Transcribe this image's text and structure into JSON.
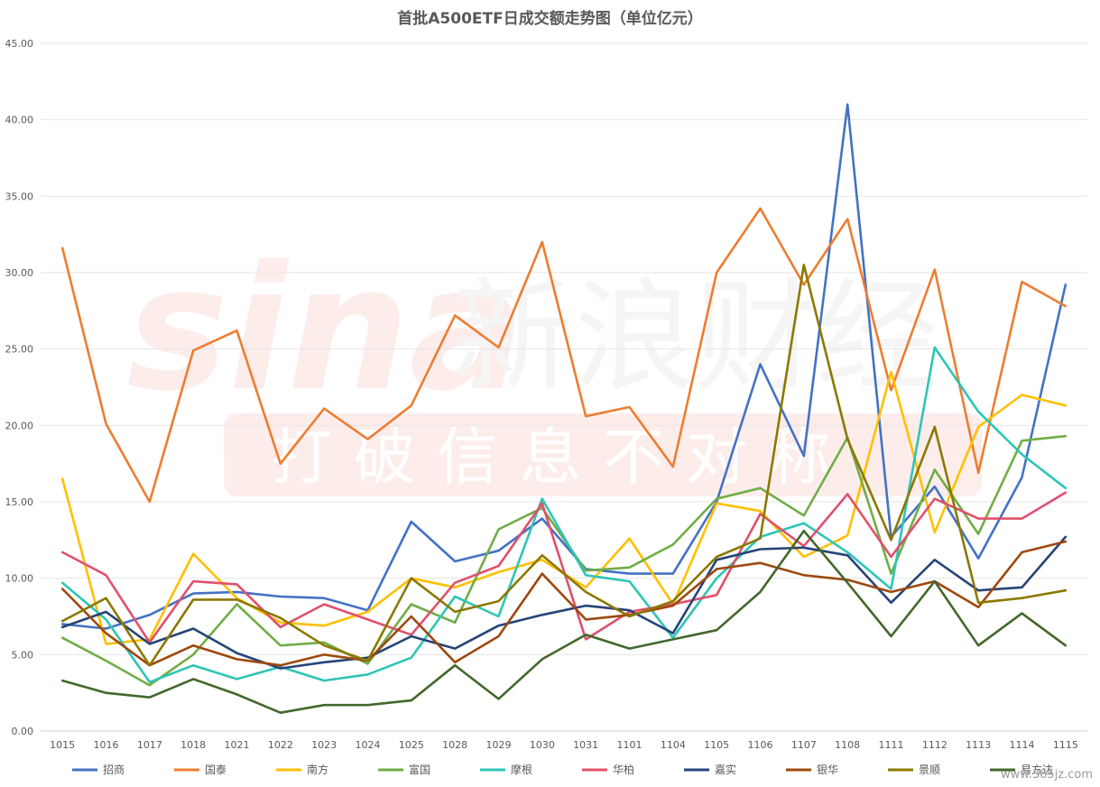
{
  "chart_data": {
    "type": "line",
    "title": "首批A500ETF日成交额走势图（单位亿元）",
    "xlabel": "",
    "ylabel": "",
    "ylim": [
      0,
      45
    ],
    "yticks": [
      "0.00",
      "5.00",
      "10.00",
      "15.00",
      "20.00",
      "25.00",
      "30.00",
      "35.00",
      "40.00",
      "45.00"
    ],
    "grid": true,
    "legend_position": "bottom",
    "categories": [
      "1015",
      "1016",
      "1017",
      "1018",
      "1021",
      "1022",
      "1023",
      "1024",
      "1025",
      "1028",
      "1029",
      "1030",
      "1031",
      "1101",
      "1104",
      "1105",
      "1106",
      "1107",
      "1108",
      "1111",
      "1112",
      "1113",
      "1114",
      "1115"
    ],
    "series": [
      {
        "name": "招商",
        "color": "#4472C4",
        "values": [
          7.0,
          6.7,
          7.6,
          9.0,
          9.1,
          8.8,
          8.7,
          7.9,
          13.7,
          11.1,
          11.8,
          13.9,
          10.6,
          10.3,
          10.3,
          15.0,
          24.0,
          18.0,
          41.0,
          12.7,
          16.0,
          11.3,
          16.6,
          29.2
        ]
      },
      {
        "name": "国泰",
        "color": "#ED7D31",
        "values": [
          31.6,
          20.1,
          15.0,
          24.9,
          26.2,
          17.5,
          21.1,
          19.1,
          21.3,
          27.2,
          25.1,
          32.0,
          20.6,
          21.2,
          17.3,
          30.0,
          34.2,
          29.2,
          33.5,
          22.3,
          30.2,
          16.9,
          29.4,
          27.8
        ]
      },
      {
        "name": "南方",
        "color": "#FFC000",
        "values": [
          16.5,
          5.7,
          6.0,
          11.6,
          8.7,
          7.1,
          6.9,
          7.8,
          10.0,
          9.4,
          10.4,
          11.2,
          9.4,
          12.6,
          8.3,
          14.9,
          14.4,
          11.4,
          12.8,
          23.5,
          13.0,
          19.9,
          22.0,
          21.3
        ]
      },
      {
        "name": "富国",
        "color": "#70AD47",
        "values": [
          6.1,
          4.6,
          3.0,
          5.0,
          8.3,
          5.6,
          5.8,
          4.4,
          8.3,
          7.1,
          13.2,
          14.6,
          10.5,
          10.7,
          12.2,
          15.2,
          15.9,
          14.1,
          19.2,
          10.3,
          17.1,
          12.9,
          19.0,
          19.3
        ]
      },
      {
        "name": "摩根",
        "color": "#2EC5B6",
        "values": [
          9.7,
          7.3,
          3.2,
          4.3,
          3.4,
          4.2,
          3.3,
          3.7,
          4.8,
          8.8,
          7.5,
          15.2,
          10.2,
          9.8,
          6.1,
          10.0,
          12.7,
          13.6,
          11.7,
          9.3,
          25.1,
          20.9,
          18.1,
          15.9
        ]
      },
      {
        "name": "华柏",
        "color": "#E0506C",
        "values": [
          11.7,
          10.2,
          5.8,
          9.8,
          9.6,
          6.8,
          8.3,
          7.3,
          6.3,
          9.7,
          10.8,
          14.9,
          6.0,
          7.8,
          8.3,
          8.9,
          14.2,
          12.1,
          15.5,
          11.4,
          15.2,
          13.9,
          13.9,
          15.6
        ]
      },
      {
        "name": "嘉实",
        "color": "#264478",
        "values": [
          6.8,
          7.8,
          5.7,
          6.7,
          5.1,
          4.1,
          4.5,
          4.8,
          6.2,
          5.4,
          6.9,
          7.6,
          8.2,
          7.9,
          6.4,
          11.2,
          11.9,
          12.0,
          11.5,
          8.4,
          11.2,
          9.2,
          9.4,
          12.7
        ]
      },
      {
        "name": "银华",
        "color": "#9E480E",
        "values": [
          9.3,
          6.4,
          4.3,
          5.6,
          4.7,
          4.3,
          5.0,
          4.6,
          7.5,
          4.5,
          6.2,
          10.3,
          7.3,
          7.6,
          8.2,
          10.6,
          11.0,
          10.2,
          9.9,
          9.1,
          9.8,
          8.1,
          11.7,
          12.4
        ]
      },
      {
        "name": "景顺",
        "color": "#8C7800",
        "values": [
          7.2,
          8.7,
          4.3,
          8.6,
          8.6,
          7.4,
          5.6,
          4.6,
          10.0,
          7.8,
          8.5,
          11.5,
          9.1,
          7.5,
          8.5,
          11.4,
          12.6,
          30.5,
          19.1,
          12.5,
          19.9,
          8.4,
          8.7,
          9.2
        ]
      },
      {
        "name": "易方达",
        "color": "#43682B",
        "values": [
          3.3,
          2.5,
          2.2,
          3.4,
          2.4,
          1.2,
          1.7,
          1.7,
          2.0,
          4.3,
          2.1,
          4.7,
          6.3,
          5.4,
          6.0,
          6.6,
          9.1,
          13.1,
          9.7,
          6.2,
          9.8,
          5.6,
          7.7,
          5.6
        ]
      }
    ],
    "legend_labels": [
      "招商",
      "国泰",
      "南方",
      "富国",
      "摩根",
      "华柏",
      "嘉实",
      "银华",
      "景顺",
      "易方达"
    ]
  },
  "watermark": {
    "brand": "sina",
    "text_big": "新浪财经",
    "slogan": "打破信息不对称",
    "site": "www.365jz.com"
  }
}
